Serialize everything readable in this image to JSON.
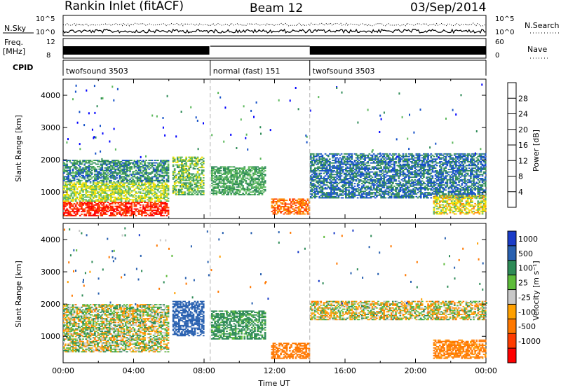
{
  "header": {
    "title": "Rankin Inlet (fitACF)",
    "beam": "Beam 12",
    "date": "03/Sep/2014"
  },
  "top_panels": {
    "nsky_label": "N.Sky",
    "nsearch_label": "N.Search",
    "nsky_ticks": [
      "10^5",
      "10^0"
    ],
    "nsearch_ticks": [
      "10^5",
      "10^0"
    ],
    "freq_label_1": "Freq.",
    "freq_label_2": "[MHz]",
    "freq_ticks": [
      "12",
      "8"
    ],
    "nave_label": "Nave",
    "nave_ticks": [
      "60",
      "0"
    ],
    "cpid_label": "CPID",
    "cpid_segments": [
      {
        "label": "twofsound 3503",
        "start_h": 0,
        "end_h": 8.35
      },
      {
        "label": "normal (fast) 151",
        "start_h": 8.35,
        "end_h": 14.0
      },
      {
        "label": "twofsound 3503",
        "start_h": 14.0,
        "end_h": 24
      }
    ]
  },
  "chart_data": [
    {
      "type": "heatmap",
      "title": "",
      "xlabel": "",
      "ylabel": "Slant Range [km]",
      "x_unit": "hours UT",
      "xlim": [
        0,
        24
      ],
      "ylim": [
        180,
        4500
      ],
      "yticks": [
        "1000",
        "2000",
        "3000",
        "4000"
      ],
      "colorbar": {
        "label": "Power [dB]",
        "ticks": [
          "4",
          "8",
          "12",
          "16",
          "20",
          "24",
          "28"
        ],
        "colors": [
          "#0000ff",
          "#1450c8",
          "#2e8b57",
          "#5cb85c",
          "#f0e000",
          "#ff8c00",
          "#ff4000",
          "#ff0000"
        ]
      },
      "regions": [
        {
          "x": [
            0.0,
            6.0
          ],
          "y": [
            250,
            700
          ],
          "value": 28
        },
        {
          "x": [
            0.0,
            6.0
          ],
          "y": [
            700,
            1300
          ],
          "value": 16
        },
        {
          "x": [
            0.0,
            6.0
          ],
          "y": [
            1300,
            2000
          ],
          "value": 10
        },
        {
          "x": [
            6.2,
            8.0
          ],
          "y": [
            900,
            2100
          ],
          "value": 14
        },
        {
          "x": [
            8.4,
            11.5
          ],
          "y": [
            900,
            1800
          ],
          "value": 12
        },
        {
          "x": [
            11.8,
            14.0
          ],
          "y": [
            300,
            800
          ],
          "value": 24
        },
        {
          "x": [
            14.0,
            24.0
          ],
          "y": [
            800,
            2200
          ],
          "value": 8
        },
        {
          "x": [
            21.0,
            24.0
          ],
          "y": [
            300,
            900
          ],
          "value": 18
        }
      ]
    },
    {
      "type": "heatmap",
      "title": "",
      "xlabel": "Time UT",
      "ylabel": "Slant Range [km]",
      "x_unit": "hours UT",
      "xlim": [
        0,
        24
      ],
      "ylim": [
        180,
        4500
      ],
      "xticks": [
        "00:00",
        "04:00",
        "08:00",
        "12:00",
        "16:00",
        "20:00",
        "00:00"
      ],
      "yticks": [
        "1000",
        "2000",
        "3000",
        "4000"
      ],
      "colorbar": {
        "label": "Velocity [m s⁻¹]",
        "ticks": [
          "1000",
          "500",
          "100",
          "25",
          "-25",
          "-100",
          "-500",
          "-1000"
        ],
        "colors": [
          "#1a3cc8",
          "#2860b0",
          "#2e8b57",
          "#5dbb3a",
          "#c8c8c8",
          "#ffa000",
          "#ff7800",
          "#ff3c00",
          "#ff0000"
        ]
      },
      "regions": [
        {
          "x": [
            0.0,
            6.0
          ],
          "y": [
            500,
            2000
          ],
          "value": 25
        },
        {
          "x": [
            6.2,
            8.0
          ],
          "y": [
            1000,
            2100
          ],
          "value": 800
        },
        {
          "x": [
            8.4,
            11.5
          ],
          "y": [
            900,
            1800
          ],
          "value": 200
        },
        {
          "x": [
            11.8,
            14.0
          ],
          "y": [
            300,
            800
          ],
          "value": -300
        },
        {
          "x": [
            14.0,
            24.0
          ],
          "y": [
            1500,
            2100
          ],
          "value": 0
        },
        {
          "x": [
            21.0,
            24.0
          ],
          "y": [
            300,
            900
          ],
          "value": -200
        }
      ]
    }
  ]
}
